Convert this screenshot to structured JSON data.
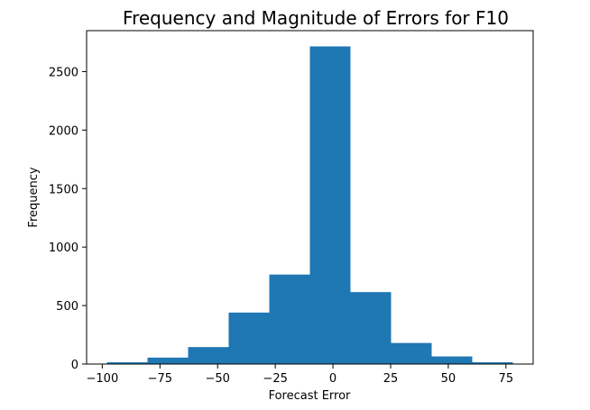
{
  "chart_data": {
    "type": "bar",
    "title": "Frequency and Magnitude of Errors for F10",
    "xlabel": "Forecast Error",
    "ylabel": "Frequency",
    "bin_edges": [
      -98,
      -80.4,
      -62.8,
      -45.2,
      -27.6,
      -10,
      7.6,
      25.2,
      42.8,
      60.4,
      78
    ],
    "values": [
      15,
      55,
      145,
      440,
      765,
      2715,
      615,
      180,
      65,
      15
    ],
    "xlim": [
      -106.8,
      86.8
    ],
    "ylim": [
      0,
      2850
    ],
    "xticks": [
      -100,
      -75,
      -50,
      -25,
      0,
      25,
      50,
      75
    ],
    "xtick_labels": [
      "−100",
      "−75",
      "−50",
      "−25",
      "0",
      "25",
      "50",
      "75"
    ],
    "yticks": [
      0,
      500,
      1000,
      1500,
      2000,
      2500
    ],
    "ytick_labels": [
      "0",
      "500",
      "1000",
      "1500",
      "2000",
      "2500"
    ],
    "bar_color": "#1f77b4",
    "grid": false,
    "legend": "none"
  }
}
